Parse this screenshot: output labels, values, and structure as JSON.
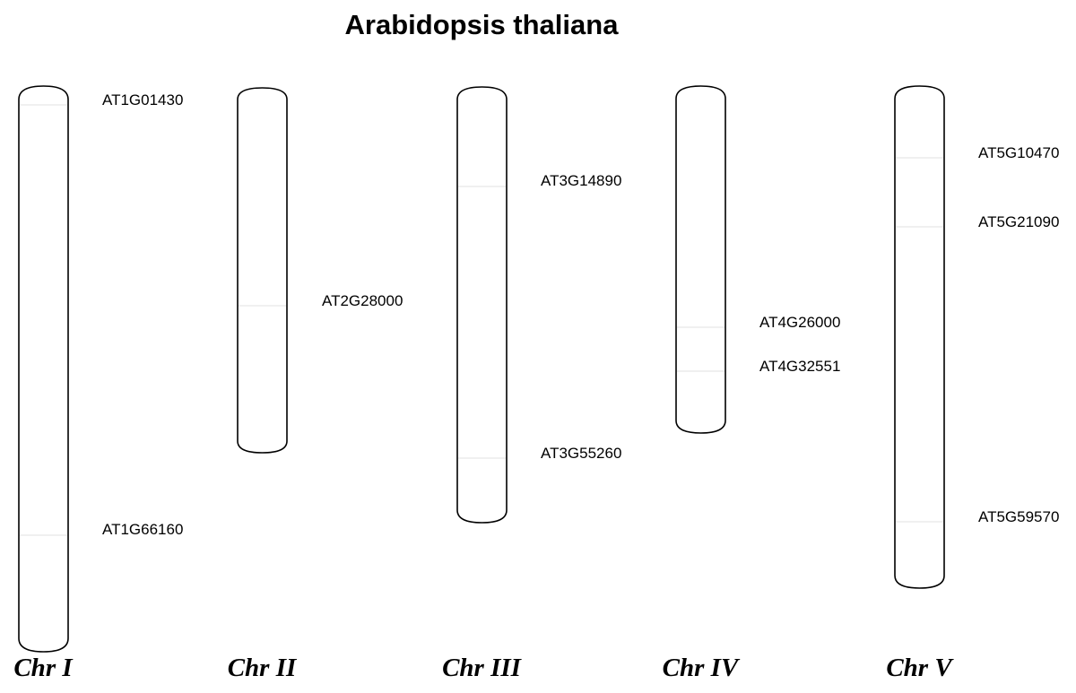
{
  "title": "Arabidopsis thaliana",
  "chromosomes": [
    {
      "label": "Chr I",
      "genes": [
        {
          "id": "AT1G01430"
        },
        {
          "id": "AT1G66160"
        }
      ]
    },
    {
      "label": "Chr II",
      "genes": [
        {
          "id": "AT2G28000"
        }
      ]
    },
    {
      "label": "Chr III",
      "genes": [
        {
          "id": "AT3G14890"
        },
        {
          "id": "AT3G55260"
        }
      ]
    },
    {
      "label": "Chr IV",
      "genes": [
        {
          "id": "AT4G26000"
        },
        {
          "id": "AT4G32551"
        }
      ]
    },
    {
      "label": "Chr V",
      "genes": [
        {
          "id": "AT5G10470"
        },
        {
          "id": "AT5G21090"
        },
        {
          "id": "AT5G59570"
        }
      ]
    }
  ]
}
